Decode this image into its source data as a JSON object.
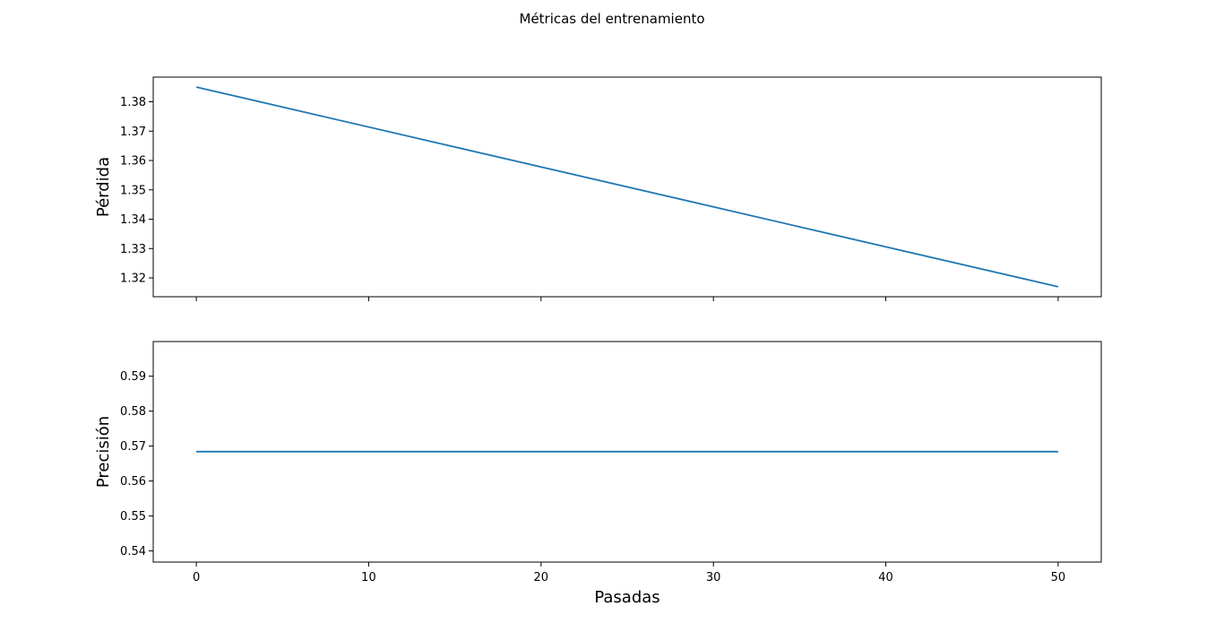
{
  "chart_data": {
    "type": "line",
    "title": "Métricas del entrenamiento",
    "line_color": "#1f77b4",
    "sharex": true,
    "xlabel": "Pasadas",
    "xlim": [
      -2.5,
      52.5
    ],
    "xticks": [
      0,
      10,
      20,
      30,
      40,
      50
    ],
    "x": [
      0,
      50
    ],
    "panels": [
      {
        "ylabel": "Pérdida",
        "ylim": [
          1.3136,
          1.3884
        ],
        "yticks": [
          1.32,
          1.33,
          1.34,
          1.35,
          1.36,
          1.37,
          1.38
        ],
        "series": [
          {
            "x": [
              0,
              50
            ],
            "values": [
              1.385,
              1.317
            ]
          }
        ],
        "show_xtick_labels": false
      },
      {
        "ylabel": "Precisión",
        "ylim": [
          0.5368,
          0.5999
        ],
        "yticks": [
          0.54,
          0.55,
          0.56,
          0.57,
          0.58,
          0.59
        ],
        "series": [
          {
            "x": [
              0,
              50
            ],
            "values": [
              0.5684,
              0.5684
            ]
          }
        ],
        "show_xtick_labels": true
      }
    ]
  }
}
